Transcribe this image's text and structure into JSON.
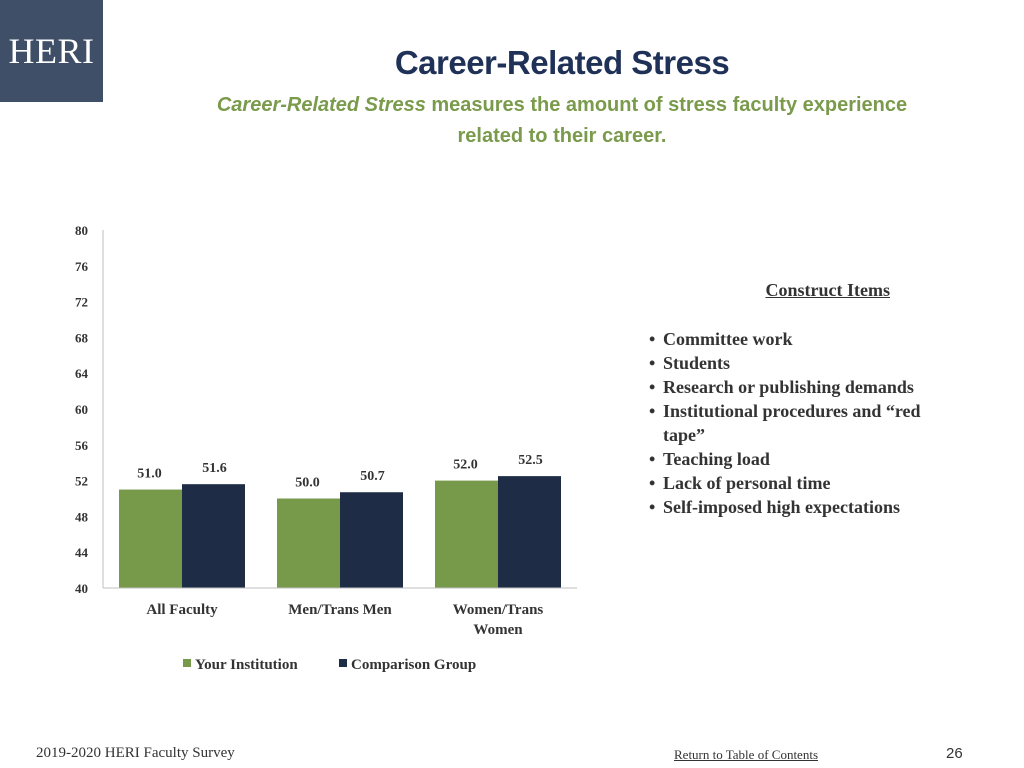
{
  "logo": {
    "text": "HERI"
  },
  "header": {
    "title": "Career-Related Stress",
    "subtitle_italic": "Career-Related Stress",
    "subtitle_rest": " measures the amount of stress faculty experience related to their career."
  },
  "colors": {
    "your_institution": "#77994a",
    "comparison_group": "#1f2c45",
    "title": "#1f3157",
    "subtitle": "#7a9a4c"
  },
  "chart_data": {
    "type": "bar",
    "title": "",
    "xlabel": "",
    "ylabel": "",
    "ylim": [
      40,
      80
    ],
    "yticks": [
      40,
      44,
      48,
      52,
      56,
      60,
      64,
      68,
      72,
      76,
      80
    ],
    "categories": [
      "All Faculty",
      "Men/Trans Men",
      "Women/Trans Women"
    ],
    "series": [
      {
        "name": "Your Institution",
        "values": [
          51.0,
          50.0,
          52.0
        ],
        "labels": [
          "51.0",
          "50.0",
          "52.0"
        ],
        "color": "#77994a"
      },
      {
        "name": "Comparison Group",
        "values": [
          51.6,
          50.7,
          52.5
        ],
        "labels": [
          "51.6",
          "50.7",
          "52.5"
        ],
        "color": "#1f2c45"
      }
    ],
    "legend": "bottom"
  },
  "construct": {
    "title": "Construct Items",
    "items": [
      "Committee work",
      "Students",
      "Research or publishing demands",
      "Institutional procedures and “red tape”",
      "Teaching load",
      "Lack of personal time",
      "Self-imposed high expectations"
    ]
  },
  "footer": {
    "survey": "2019-2020 HERI Faculty Survey",
    "link": "Return to Table of Contents",
    "page": "26"
  }
}
